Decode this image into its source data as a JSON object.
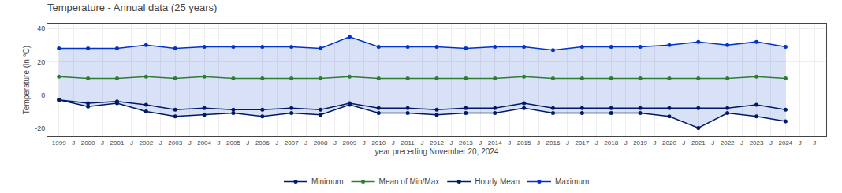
{
  "chart_data": {
    "type": "line",
    "title": "Temperature - Annual data (25 years)",
    "xlabel": "year preceding November 20, 2024",
    "ylabel": "Temperature (in °C)",
    "x": [
      1999,
      2000,
      2001,
      2002,
      2003,
      2004,
      2005,
      2006,
      2007,
      2008,
      2009,
      2010,
      2011,
      2012,
      2013,
      2014,
      2015,
      2016,
      2017,
      2018,
      2019,
      2020,
      2021,
      2022,
      2023,
      2024
    ],
    "series": [
      {
        "name": "Maximum",
        "color": "#0033cc",
        "values": [
          28,
          28,
          28,
          30,
          28,
          29,
          29,
          29,
          29,
          28,
          35,
          29,
          29,
          29,
          28,
          29,
          29,
          27,
          29,
          29,
          29,
          30,
          32,
          30,
          32,
          29
        ]
      },
      {
        "name": "Hourly Mean",
        "color": "#001a66",
        "values": [
          -3,
          -5,
          -4,
          -6,
          -9,
          -8,
          -9,
          -9,
          -8,
          -9,
          -5,
          -8,
          -8,
          -9,
          -8,
          -8,
          -5,
          -8,
          -8,
          -8,
          -8,
          -8,
          -8,
          -8,
          -6,
          -9
        ]
      },
      {
        "name": "Mean of Min/Max",
        "color": "#2e7d32",
        "values": [
          11,
          10,
          10,
          11,
          10,
          11,
          10,
          10,
          10,
          10,
          11,
          10,
          10,
          10,
          10,
          10,
          11,
          10,
          10,
          10,
          10,
          10,
          10,
          10,
          11,
          10
        ]
      },
      {
        "name": "Minimum",
        "color": "#001a66",
        "values": [
          -3,
          -7,
          -5,
          -10,
          -13,
          -12,
          -11,
          -13,
          -11,
          -12,
          -6,
          -11,
          -11,
          -12,
          -11,
          -11,
          -8,
          -11,
          -11,
          -11,
          -11,
          -13,
          -20,
          -11,
          -13,
          -16
        ]
      }
    ],
    "xlim": [
      1998.6,
      2025.4
    ],
    "xticks": [
      1999,
      {
        "value": 1999.5,
        "label": "J"
      },
      2000,
      {
        "value": 2000.5,
        "label": "J"
      },
      2001,
      {
        "value": 2001.5,
        "label": "J"
      },
      2002,
      {
        "value": 2002.5,
        "label": "J"
      },
      2003,
      {
        "value": 2003.5,
        "label": "J"
      },
      2004,
      {
        "value": 2004.5,
        "label": "J"
      },
      2005,
      {
        "value": 2005.5,
        "label": "J"
      },
      2006,
      {
        "value": 2006.5,
        "label": "J"
      },
      2007,
      {
        "value": 2007.5,
        "label": "J"
      },
      2008,
      {
        "value": 2008.5,
        "label": "J"
      },
      2009,
      {
        "value": 2009.5,
        "label": "J"
      },
      2010,
      {
        "value": 2010.5,
        "label": "J"
      },
      2011,
      {
        "value": 2011.5,
        "label": "J"
      },
      2012,
      {
        "value": 2012.5,
        "label": "J"
      },
      2013,
      {
        "value": 2013.5,
        "label": "J"
      },
      2014,
      {
        "value": 2014.5,
        "label": "J"
      },
      2015,
      {
        "value": 2015.5,
        "label": "J"
      },
      2016,
      {
        "value": 2016.5,
        "label": "J"
      },
      2017,
      {
        "value": 2017.5,
        "label": "J"
      },
      2018,
      {
        "value": 2018.5,
        "label": "J"
      },
      2019,
      {
        "value": 2019.5,
        "label": "J"
      },
      2020,
      {
        "value": 2020.5,
        "label": "J"
      },
      2021,
      {
        "value": 2021.5,
        "label": "J"
      },
      2022,
      {
        "value": 2022.5,
        "label": "J"
      },
      2023,
      {
        "value": 2023.5,
        "label": "J"
      },
      2024,
      {
        "value": 2024.5,
        "label": "J"
      },
      {
        "value": 2025,
        "label": "J"
      }
    ],
    "ylim": [
      -25,
      43
    ],
    "yticks": [
      -20,
      0,
      20,
      40
    ],
    "grid": true,
    "legend": "bottom",
    "marker": "circle"
  }
}
